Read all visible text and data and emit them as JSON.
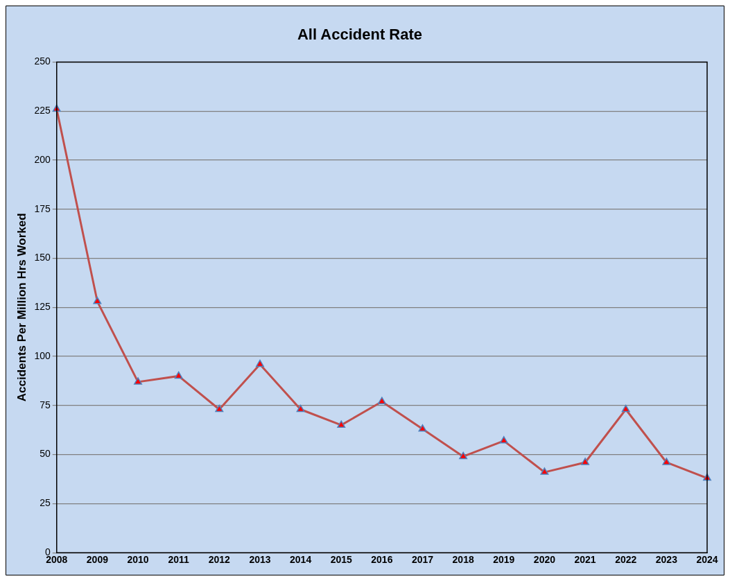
{
  "chart_data": {
    "type": "line",
    "title": "All Accident Rate",
    "ylabel": "Accidents Per Million Hrs Worked",
    "categories": [
      "2008",
      "2009",
      "2010",
      "2011",
      "2012",
      "2013",
      "2014",
      "2015",
      "2016",
      "2017",
      "2018",
      "2019",
      "2020",
      "2021",
      "2022",
      "2023",
      "2024"
    ],
    "series": [
      {
        "color": "#c0504d",
        "values": [
          226,
          128,
          87,
          90,
          73,
          96,
          73,
          65,
          77,
          63,
          49,
          57,
          41,
          46,
          73,
          46,
          38
        ]
      }
    ],
    "ylim": [
      0,
      250
    ],
    "yticks": [
      0,
      25,
      50,
      75,
      100,
      125,
      150,
      175,
      200,
      225,
      250
    ],
    "grid": "y",
    "legend": false,
    "marker": "triangle",
    "line_style": "solid"
  }
}
